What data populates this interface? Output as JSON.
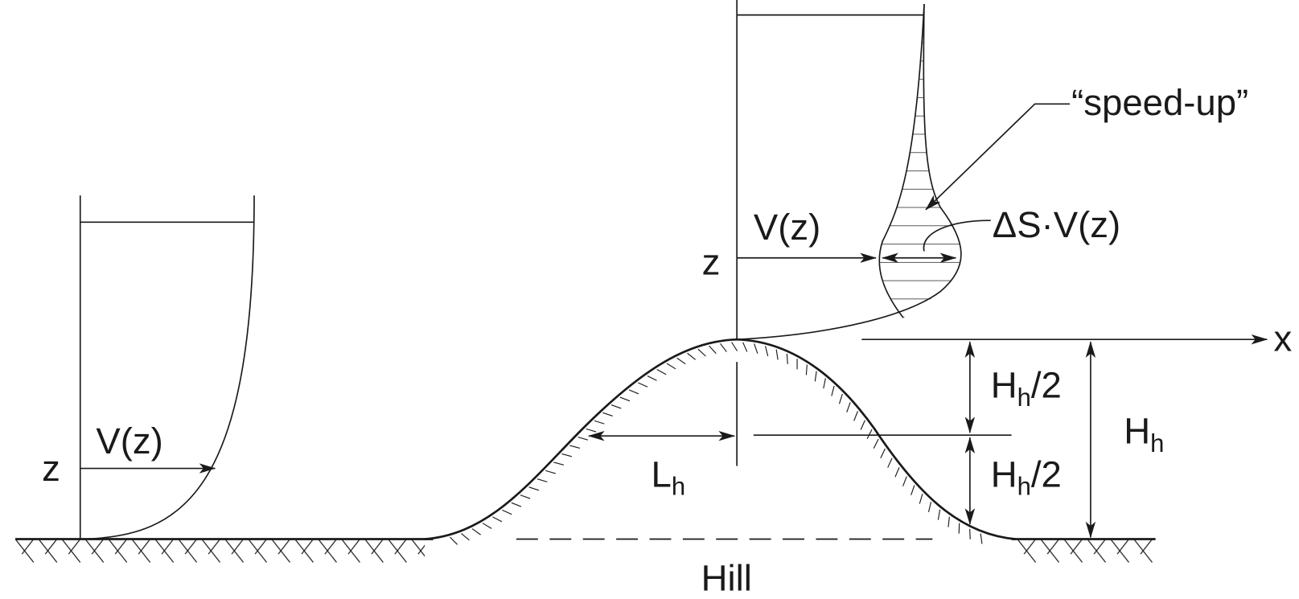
{
  "left_profile": {
    "velocity_label": "V(z)",
    "height_label": "z"
  },
  "right_profile": {
    "velocity_label": "V(z)",
    "height_label": "z",
    "speed_up_label": "“speed-up”",
    "increment_label": "ΔS·V(z)"
  },
  "axis": {
    "x_label": "x"
  },
  "dimensions": {
    "half_height_upper": {
      "main": "H",
      "sub": "h",
      "tail": "/2"
    },
    "half_height_lower": {
      "main": "H",
      "sub": "h",
      "tail": "/2"
    },
    "height": {
      "main": "H",
      "sub": "h"
    },
    "half_length": {
      "main": "L",
      "sub": "h"
    }
  },
  "hill_label": "Hill"
}
